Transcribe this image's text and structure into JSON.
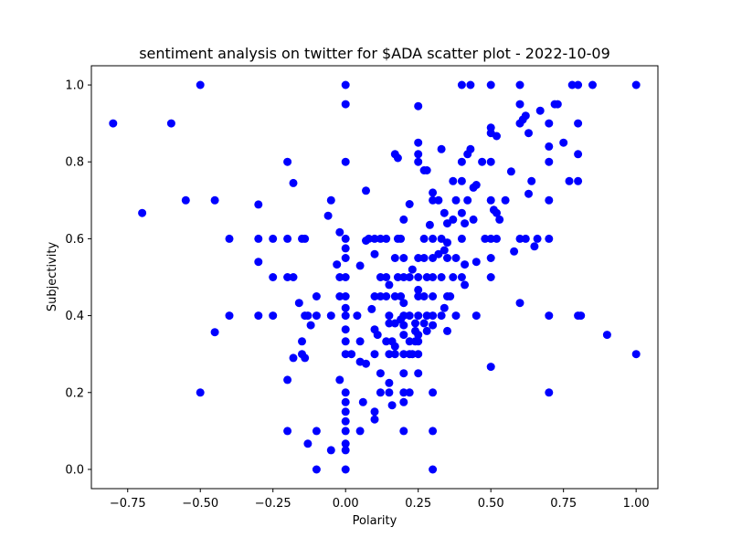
{
  "chart_data": {
    "type": "scatter",
    "title": "sentiment analysis on twitter for $ADA scatter plot - 2022-10-09",
    "xlabel": "Polarity",
    "ylabel": "Subjectivity",
    "xlim": [
      -0.875,
      1.075
    ],
    "ylim": [
      -0.05,
      1.05
    ],
    "x_ticks": [
      -0.75,
      -0.5,
      -0.25,
      0.0,
      0.25,
      0.5,
      0.75,
      1.0
    ],
    "x_tick_labels": [
      "−0.75",
      "−0.50",
      "−0.25",
      "0.00",
      "0.25",
      "0.50",
      "0.75",
      "1.00"
    ],
    "y_ticks": [
      0.0,
      0.2,
      0.4,
      0.6,
      0.8,
      1.0
    ],
    "y_tick_labels": [
      "0.0",
      "0.2",
      "0.4",
      "0.6",
      "0.8",
      "1.0"
    ],
    "grid": false,
    "marker_color": "#0000ff",
    "points": [
      [
        -0.8,
        0.9
      ],
      [
        -0.6,
        0.9
      ],
      [
        -0.5,
        1.0
      ],
      [
        -0.55,
        0.7
      ],
      [
        -0.45,
        0.7
      ],
      [
        -0.7,
        0.667
      ],
      [
        -0.4,
        0.6
      ],
      [
        -0.4,
        0.4
      ],
      [
        -0.45,
        0.357
      ],
      [
        -0.5,
        0.2
      ],
      [
        -0.3,
        0.689
      ],
      [
        -0.3,
        0.6
      ],
      [
        -0.25,
        0.6
      ],
      [
        -0.3,
        0.54
      ],
      [
        -0.25,
        0.5
      ],
      [
        -0.3,
        0.4
      ],
      [
        -0.25,
        0.4
      ],
      [
        -0.2,
        0.8
      ],
      [
        -0.18,
        0.745
      ],
      [
        -0.2,
        0.6
      ],
      [
        -0.15,
        0.6
      ],
      [
        -0.14,
        0.6
      ],
      [
        -0.2,
        0.5
      ],
      [
        -0.18,
        0.5
      ],
      [
        -0.16,
        0.433
      ],
      [
        -0.14,
        0.4
      ],
      [
        -0.13,
        0.4
      ],
      [
        -0.12,
        0.375
      ],
      [
        -0.1,
        0.45
      ],
      [
        -0.1,
        0.4
      ],
      [
        -0.15,
        0.333
      ],
      [
        -0.15,
        0.3
      ],
      [
        -0.14,
        0.29
      ],
      [
        -0.18,
        0.29
      ],
      [
        -0.2,
        0.233
      ],
      [
        -0.2,
        0.1
      ],
      [
        -0.13,
        0.067
      ],
      [
        -0.1,
        0.1
      ],
      [
        -0.1,
        0.0
      ],
      [
        -0.05,
        0.05
      ],
      [
        0.0,
        1.0
      ],
      [
        0.0,
        0.95
      ],
      [
        0.0,
        0.8
      ],
      [
        -0.06,
        0.66
      ],
      [
        -0.05,
        0.7
      ],
      [
        -0.02,
        0.617
      ],
      [
        0.0,
        0.6
      ],
      [
        0.0,
        0.55
      ],
      [
        -0.03,
        0.533
      ],
      [
        -0.02,
        0.5
      ],
      [
        0.0,
        0.5
      ],
      [
        -0.02,
        0.45
      ],
      [
        0.0,
        0.45
      ],
      [
        0.0,
        0.4
      ],
      [
        -0.05,
        0.4
      ],
      [
        0.0,
        0.364
      ],
      [
        0.0,
        0.333
      ],
      [
        0.0,
        0.3
      ],
      [
        -0.02,
        0.233
      ],
      [
        0.0,
        0.2
      ],
      [
        0.0,
        0.175
      ],
      [
        0.0,
        0.15
      ],
      [
        0.0,
        0.125
      ],
      [
        0.0,
        0.1
      ],
      [
        0.0,
        0.067
      ],
      [
        0.0,
        0.05
      ],
      [
        0.0,
        0.0
      ],
      [
        0.0,
        0.575
      ],
      [
        0.0,
        0.42
      ],
      [
        0.02,
        0.3
      ],
      [
        0.05,
        0.53
      ],
      [
        0.04,
        0.4
      ],
      [
        0.05,
        0.333
      ],
      [
        0.05,
        0.28
      ],
      [
        0.05,
        0.1
      ],
      [
        0.06,
        0.175
      ],
      [
        0.07,
        0.725
      ],
      [
        0.07,
        0.595
      ],
      [
        0.08,
        0.6
      ],
      [
        0.07,
        0.275
      ],
      [
        0.1,
        0.6
      ],
      [
        0.1,
        0.56
      ],
      [
        0.1,
        0.45
      ],
      [
        0.09,
        0.417
      ],
      [
        0.1,
        0.364
      ],
      [
        0.1,
        0.3
      ],
      [
        0.1,
        0.15
      ],
      [
        0.1,
        0.13
      ],
      [
        0.12,
        0.6
      ],
      [
        0.12,
        0.5
      ],
      [
        0.12,
        0.45
      ],
      [
        0.11,
        0.35
      ],
      [
        0.12,
        0.25
      ],
      [
        0.12,
        0.2
      ],
      [
        0.14,
        0.6
      ],
      [
        0.14,
        0.5
      ],
      [
        0.15,
        0.48
      ],
      [
        0.14,
        0.45
      ],
      [
        0.15,
        0.4
      ],
      [
        0.15,
        0.38
      ],
      [
        0.14,
        0.333
      ],
      [
        0.15,
        0.3
      ],
      [
        0.15,
        0.225
      ],
      [
        0.15,
        0.2
      ],
      [
        0.17,
        0.82
      ],
      [
        0.18,
        0.81
      ],
      [
        0.18,
        0.6
      ],
      [
        0.17,
        0.55
      ],
      [
        0.18,
        0.5
      ],
      [
        0.17,
        0.45
      ],
      [
        0.17,
        0.38
      ],
      [
        0.16,
        0.333
      ],
      [
        0.17,
        0.32
      ],
      [
        0.17,
        0.3
      ],
      [
        0.16,
        0.167
      ],
      [
        0.2,
        0.65
      ],
      [
        0.19,
        0.6
      ],
      [
        0.2,
        0.55
      ],
      [
        0.2,
        0.5
      ],
      [
        0.19,
        0.45
      ],
      [
        0.2,
        0.433
      ],
      [
        0.2,
        0.4
      ],
      [
        0.19,
        0.39
      ],
      [
        0.2,
        0.375
      ],
      [
        0.2,
        0.35
      ],
      [
        0.2,
        0.3
      ],
      [
        0.2,
        0.25
      ],
      [
        0.2,
        0.2
      ],
      [
        0.2,
        0.175
      ],
      [
        0.2,
        0.1
      ],
      [
        0.22,
        0.69
      ],
      [
        0.22,
        0.5
      ],
      [
        0.22,
        0.4
      ],
      [
        0.22,
        0.333
      ],
      [
        0.22,
        0.3
      ],
      [
        0.22,
        0.2
      ],
      [
        0.23,
        0.52
      ],
      [
        0.24,
        0.38
      ],
      [
        0.24,
        0.36
      ],
      [
        0.24,
        0.333
      ],
      [
        0.23,
        0.3
      ],
      [
        0.25,
        0.945
      ],
      [
        0.25,
        0.85
      ],
      [
        0.25,
        0.82
      ],
      [
        0.25,
        0.8
      ],
      [
        0.25,
        0.55
      ],
      [
        0.25,
        0.5
      ],
      [
        0.25,
        0.467
      ],
      [
        0.25,
        0.45
      ],
      [
        0.25,
        0.4
      ],
      [
        0.25,
        0.35
      ],
      [
        0.25,
        0.333
      ],
      [
        0.25,
        0.3
      ],
      [
        0.25,
        0.25
      ],
      [
        0.27,
        0.778
      ],
      [
        0.28,
        0.778
      ],
      [
        0.27,
        0.6
      ],
      [
        0.27,
        0.55
      ],
      [
        0.28,
        0.5
      ],
      [
        0.27,
        0.45
      ],
      [
        0.28,
        0.4
      ],
      [
        0.27,
        0.38
      ],
      [
        0.28,
        0.36
      ],
      [
        0.3,
        0.72
      ],
      [
        0.3,
        0.7
      ],
      [
        0.29,
        0.636
      ],
      [
        0.3,
        0.6
      ],
      [
        0.3,
        0.55
      ],
      [
        0.3,
        0.5
      ],
      [
        0.3,
        0.45
      ],
      [
        0.3,
        0.4
      ],
      [
        0.3,
        0.375
      ],
      [
        0.3,
        0.2
      ],
      [
        0.3,
        0.1
      ],
      [
        0.3,
        0.0
      ],
      [
        0.33,
        0.833
      ],
      [
        0.32,
        0.7
      ],
      [
        0.34,
        0.667
      ],
      [
        0.35,
        0.64
      ],
      [
        0.33,
        0.6
      ],
      [
        0.35,
        0.59
      ],
      [
        0.34,
        0.57
      ],
      [
        0.32,
        0.56
      ],
      [
        0.35,
        0.55
      ],
      [
        0.33,
        0.5
      ],
      [
        0.35,
        0.45
      ],
      [
        0.34,
        0.42
      ],
      [
        0.33,
        0.4
      ],
      [
        0.35,
        0.36
      ],
      [
        0.37,
        0.75
      ],
      [
        0.38,
        0.7
      ],
      [
        0.37,
        0.65
      ],
      [
        0.38,
        0.55
      ],
      [
        0.37,
        0.5
      ],
      [
        0.36,
        0.45
      ],
      [
        0.38,
        0.4
      ],
      [
        0.4,
        1.0
      ],
      [
        0.43,
        1.0
      ],
      [
        0.4,
        0.8
      ],
      [
        0.42,
        0.82
      ],
      [
        0.43,
        0.833
      ],
      [
        0.4,
        0.75
      ],
      [
        0.42,
        0.7
      ],
      [
        0.4,
        0.667
      ],
      [
        0.41,
        0.64
      ],
      [
        0.4,
        0.6
      ],
      [
        0.41,
        0.533
      ],
      [
        0.4,
        0.5
      ],
      [
        0.41,
        0.48
      ],
      [
        0.44,
        0.733
      ],
      [
        0.45,
        0.74
      ],
      [
        0.44,
        0.65
      ],
      [
        0.45,
        0.54
      ],
      [
        0.45,
        0.4
      ],
      [
        0.47,
        0.8
      ],
      [
        0.48,
        0.6
      ],
      [
        0.5,
        1.0
      ],
      [
        0.5,
        0.889
      ],
      [
        0.5,
        0.875
      ],
      [
        0.52,
        0.867
      ],
      [
        0.5,
        0.8
      ],
      [
        0.5,
        0.7
      ],
      [
        0.51,
        0.675
      ],
      [
        0.52,
        0.667
      ],
      [
        0.53,
        0.65
      ],
      [
        0.5,
        0.6
      ],
      [
        0.52,
        0.6
      ],
      [
        0.5,
        0.55
      ],
      [
        0.5,
        0.5
      ],
      [
        0.5,
        0.267
      ],
      [
        0.55,
        0.7
      ],
      [
        0.57,
        0.775
      ],
      [
        0.58,
        0.567
      ],
      [
        0.6,
        1.0
      ],
      [
        0.6,
        0.95
      ],
      [
        0.62,
        0.92
      ],
      [
        0.6,
        0.9
      ],
      [
        0.61,
        0.91
      ],
      [
        0.63,
        0.875
      ],
      [
        0.6,
        0.6
      ],
      [
        0.62,
        0.6
      ],
      [
        0.6,
        0.433
      ],
      [
        0.63,
        0.717
      ],
      [
        0.64,
        0.75
      ],
      [
        0.65,
        0.58
      ],
      [
        0.66,
        0.6
      ],
      [
        0.67,
        0.933
      ],
      [
        0.7,
        0.9
      ],
      [
        0.7,
        0.84
      ],
      [
        0.7,
        0.8
      ],
      [
        0.7,
        0.7
      ],
      [
        0.7,
        0.6
      ],
      [
        0.7,
        0.4
      ],
      [
        0.7,
        0.2
      ],
      [
        0.72,
        0.95
      ],
      [
        0.73,
        0.95
      ],
      [
        0.75,
        0.85
      ],
      [
        0.78,
        1.0
      ],
      [
        0.8,
        1.0
      ],
      [
        0.77,
        0.75
      ],
      [
        0.8,
        0.75
      ],
      [
        0.8,
        0.82
      ],
      [
        0.8,
        0.9
      ],
      [
        0.8,
        0.4
      ],
      [
        0.81,
        0.4
      ],
      [
        0.85,
        1.0
      ],
      [
        0.9,
        0.35
      ],
      [
        1.0,
        1.0
      ],
      [
        1.0,
        0.3
      ]
    ]
  }
}
